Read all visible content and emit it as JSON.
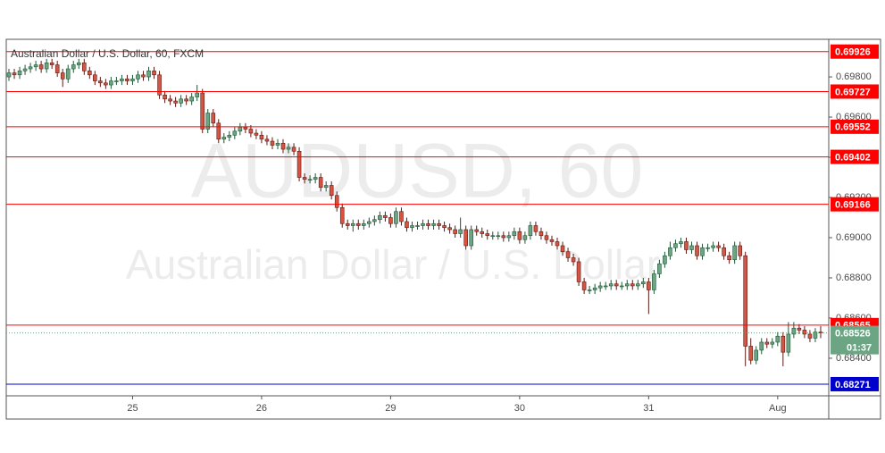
{
  "chart_data": {
    "type": "candlestick",
    "title": "Australian Dollar / U.S. Dollar, 60, FXCM",
    "watermark": [
      "AUDUSD, 60",
      "Australian Dollar / U.S. Dollar"
    ],
    "up_color": "#6ba583",
    "up_border": "#225437",
    "down_color": "#d75442",
    "down_border": "#5b1a13",
    "xlim": [
      -0.5,
      152.5
    ],
    "xticks": [
      {
        "value": 23,
        "label": "25"
      },
      {
        "value": 47,
        "label": "26"
      },
      {
        "value": 71,
        "label": "29"
      },
      {
        "value": 95,
        "label": "30"
      },
      {
        "value": 119,
        "label": "31"
      },
      {
        "value": 143,
        "label": "Aug"
      }
    ],
    "ylim": [
      0.68213,
      0.69987
    ],
    "yticks": [
      {
        "value": 0.698,
        "label": "0.69800"
      },
      {
        "value": 0.696,
        "label": "0.69600"
      },
      {
        "value": 0.694,
        "label": "0.69400"
      },
      {
        "value": 0.692,
        "label": "0.69200"
      },
      {
        "value": 0.69,
        "label": "0.69000"
      },
      {
        "value": 0.688,
        "label": "0.68800"
      },
      {
        "value": 0.686,
        "label": "0.68600"
      },
      {
        "value": 0.684,
        "label": "0.68400"
      }
    ],
    "levels": [
      {
        "value": 0.69926,
        "color": "#ff0000"
      },
      {
        "value": 0.69727,
        "color": "#ff0000"
      },
      {
        "value": 0.69552,
        "color": "#ff0000"
      },
      {
        "value": 0.69402,
        "color": "#ff0000"
      },
      {
        "value": 0.69166,
        "color": "#ff0000"
      },
      {
        "value": 0.68565,
        "color": "#ff0000"
      },
      {
        "value": 0.68271,
        "color": "#0000cc"
      }
    ],
    "countdown": "01:37",
    "candles": [
      [
        0.698,
        0.6984,
        0.6978,
        0.6982
      ],
      [
        0.6982,
        0.6984,
        0.6979,
        0.6981
      ],
      [
        0.6981,
        0.6985,
        0.6979,
        0.6983
      ],
      [
        0.6983,
        0.6986,
        0.6981,
        0.6984
      ],
      [
        0.6984,
        0.6987,
        0.6982,
        0.6985
      ],
      [
        0.6985,
        0.6988,
        0.6983,
        0.6986
      ],
      [
        0.6986,
        0.6988,
        0.6982,
        0.6984
      ],
      [
        0.6984,
        0.6989,
        0.6982,
        0.6987
      ],
      [
        0.6987,
        0.6989,
        0.6984,
        0.6986
      ],
      [
        0.6986,
        0.6988,
        0.698,
        0.6982
      ],
      [
        0.6982,
        0.6984,
        0.6975,
        0.6979
      ],
      [
        0.6979,
        0.6986,
        0.6977,
        0.6984
      ],
      [
        0.6984,
        0.6988,
        0.6982,
        0.6986
      ],
      [
        0.6986,
        0.6989,
        0.6984,
        0.6987
      ],
      [
        0.6987,
        0.6989,
        0.6981,
        0.6983
      ],
      [
        0.6983,
        0.6985,
        0.6979,
        0.6981
      ],
      [
        0.6981,
        0.6983,
        0.6976,
        0.6978
      ],
      [
        0.6978,
        0.698,
        0.6975,
        0.6977
      ],
      [
        0.6977,
        0.6979,
        0.6974,
        0.6976
      ],
      [
        0.6976,
        0.698,
        0.6974,
        0.6978
      ],
      [
        0.6978,
        0.698,
        0.6976,
        0.6978
      ],
      [
        0.6978,
        0.6981,
        0.6976,
        0.6979
      ],
      [
        0.6979,
        0.6981,
        0.6976,
        0.6978
      ],
      [
        0.6978,
        0.6981,
        0.6976,
        0.6979
      ],
      [
        0.6979,
        0.6983,
        0.6977,
        0.6981
      ],
      [
        0.6981,
        0.6983,
        0.6978,
        0.698
      ],
      [
        0.698,
        0.6985,
        0.6978,
        0.6983
      ],
      [
        0.6983,
        0.6985,
        0.6979,
        0.6981
      ],
      [
        0.6981,
        0.6983,
        0.6969,
        0.6971
      ],
      [
        0.6971,
        0.6973,
        0.6967,
        0.6969
      ],
      [
        0.6969,
        0.6971,
        0.6966,
        0.6968
      ],
      [
        0.6968,
        0.697,
        0.6965,
        0.6967
      ],
      [
        0.6967,
        0.6971,
        0.6965,
        0.6969
      ],
      [
        0.6969,
        0.6971,
        0.6966,
        0.6968
      ],
      [
        0.6968,
        0.6972,
        0.6966,
        0.697
      ],
      [
        0.697,
        0.6976,
        0.6968,
        0.6972
      ],
      [
        0.6972,
        0.6974,
        0.6952,
        0.6954
      ],
      [
        0.6954,
        0.6964,
        0.6952,
        0.6962
      ],
      [
        0.6962,
        0.6964,
        0.6955,
        0.6957
      ],
      [
        0.6957,
        0.6959,
        0.6947,
        0.6949
      ],
      [
        0.6949,
        0.6952,
        0.6947,
        0.695
      ],
      [
        0.695,
        0.6953,
        0.6948,
        0.6951
      ],
      [
        0.6951,
        0.6955,
        0.6949,
        0.6953
      ],
      [
        0.6953,
        0.6957,
        0.6951,
        0.6955
      ],
      [
        0.6955,
        0.6957,
        0.6952,
        0.6954
      ],
      [
        0.6954,
        0.6956,
        0.695,
        0.6952
      ],
      [
        0.6952,
        0.6954,
        0.6949,
        0.6951
      ],
      [
        0.6951,
        0.6953,
        0.6947,
        0.6949
      ],
      [
        0.6949,
        0.6951,
        0.6946,
        0.6948
      ],
      [
        0.6948,
        0.695,
        0.6944,
        0.6946
      ],
      [
        0.6946,
        0.6949,
        0.6944,
        0.6947
      ],
      [
        0.6947,
        0.6949,
        0.6942,
        0.6944
      ],
      [
        0.6944,
        0.6947,
        0.6942,
        0.6945
      ],
      [
        0.6945,
        0.6947,
        0.6941,
        0.6943
      ],
      [
        0.6943,
        0.6945,
        0.6928,
        0.693
      ],
      [
        0.693,
        0.6932,
        0.6927,
        0.6929
      ],
      [
        0.6929,
        0.6931,
        0.6927,
        0.6929
      ],
      [
        0.6929,
        0.6932,
        0.6927,
        0.693
      ],
      [
        0.693,
        0.6932,
        0.6923,
        0.6925
      ],
      [
        0.6925,
        0.6928,
        0.6923,
        0.6926
      ],
      [
        0.6926,
        0.6928,
        0.6919,
        0.6921
      ],
      [
        0.6921,
        0.6923,
        0.6913,
        0.6915
      ],
      [
        0.6915,
        0.6917,
        0.6905,
        0.6907
      ],
      [
        0.6907,
        0.6909,
        0.6904,
        0.6906
      ],
      [
        0.6906,
        0.6909,
        0.6903,
        0.6907
      ],
      [
        0.6907,
        0.6909,
        0.6904,
        0.6906
      ],
      [
        0.6906,
        0.6909,
        0.6904,
        0.6907
      ],
      [
        0.6907,
        0.691,
        0.6905,
        0.6908
      ],
      [
        0.6908,
        0.6911,
        0.6906,
        0.6909
      ],
      [
        0.6909,
        0.6913,
        0.6907,
        0.6911
      ],
      [
        0.6911,
        0.6913,
        0.6908,
        0.691
      ],
      [
        0.691,
        0.6912,
        0.6905,
        0.6907
      ],
      [
        0.6907,
        0.6915,
        0.6905,
        0.6913
      ],
      [
        0.6913,
        0.6915,
        0.6906,
        0.6908
      ],
      [
        0.6908,
        0.691,
        0.6903,
        0.6905
      ],
      [
        0.6905,
        0.6908,
        0.6903,
        0.6906
      ],
      [
        0.6906,
        0.6908,
        0.6904,
        0.6906
      ],
      [
        0.6906,
        0.6909,
        0.6904,
        0.6907
      ],
      [
        0.6907,
        0.6909,
        0.6904,
        0.6906
      ],
      [
        0.6906,
        0.6909,
        0.6904,
        0.6907
      ],
      [
        0.6907,
        0.6909,
        0.6904,
        0.6906
      ],
      [
        0.6906,
        0.6908,
        0.6903,
        0.6905
      ],
      [
        0.6905,
        0.6907,
        0.6902,
        0.6904
      ],
      [
        0.6904,
        0.6906,
        0.69,
        0.6902
      ],
      [
        0.6902,
        0.691,
        0.69,
        0.6904
      ],
      [
        0.6904,
        0.6906,
        0.6894,
        0.6896
      ],
      [
        0.6896,
        0.6906,
        0.6894,
        0.6904
      ],
      [
        0.6904,
        0.6906,
        0.6901,
        0.6903
      ],
      [
        0.6903,
        0.6905,
        0.69,
        0.6902
      ],
      [
        0.6902,
        0.6904,
        0.6899,
        0.6901
      ],
      [
        0.6901,
        0.6903,
        0.6899,
        0.6901
      ],
      [
        0.6901,
        0.6903,
        0.6899,
        0.6901
      ],
      [
        0.6901,
        0.6903,
        0.6898,
        0.69
      ],
      [
        0.69,
        0.6903,
        0.6898,
        0.6901
      ],
      [
        0.6901,
        0.6905,
        0.6899,
        0.6903
      ],
      [
        0.6903,
        0.6905,
        0.6897,
        0.6899
      ],
      [
        0.6899,
        0.6903,
        0.6897,
        0.6901
      ],
      [
        0.6901,
        0.6908,
        0.6899,
        0.6906
      ],
      [
        0.6906,
        0.6908,
        0.6901,
        0.6903
      ],
      [
        0.6903,
        0.6905,
        0.6899,
        0.6901
      ],
      [
        0.6901,
        0.6903,
        0.6897,
        0.6899
      ],
      [
        0.6899,
        0.6901,
        0.6896,
        0.6898
      ],
      [
        0.6898,
        0.69,
        0.6894,
        0.6896
      ],
      [
        0.6896,
        0.6898,
        0.6891,
        0.6893
      ],
      [
        0.6893,
        0.6895,
        0.6888,
        0.689
      ],
      [
        0.689,
        0.6892,
        0.6886,
        0.6888
      ],
      [
        0.6888,
        0.689,
        0.6876,
        0.6878
      ],
      [
        0.6878,
        0.688,
        0.6872,
        0.6874
      ],
      [
        0.6874,
        0.6876,
        0.6872,
        0.6874
      ],
      [
        0.6874,
        0.6877,
        0.6872,
        0.6875
      ],
      [
        0.6875,
        0.6878,
        0.6873,
        0.6876
      ],
      [
        0.6876,
        0.6878,
        0.6874,
        0.6876
      ],
      [
        0.6876,
        0.6879,
        0.6874,
        0.6877
      ],
      [
        0.6877,
        0.6879,
        0.6874,
        0.6876
      ],
      [
        0.6876,
        0.6878,
        0.6874,
        0.6876
      ],
      [
        0.6876,
        0.6879,
        0.6874,
        0.6877
      ],
      [
        0.6877,
        0.6879,
        0.6874,
        0.6876
      ],
      [
        0.6876,
        0.6879,
        0.6874,
        0.6877
      ],
      [
        0.6877,
        0.688,
        0.6875,
        0.6878
      ],
      [
        0.6878,
        0.688,
        0.6862,
        0.6874
      ],
      [
        0.6874,
        0.6884,
        0.6872,
        0.6882
      ],
      [
        0.6882,
        0.6889,
        0.688,
        0.6887
      ],
      [
        0.6887,
        0.6893,
        0.6885,
        0.6891
      ],
      [
        0.6891,
        0.6898,
        0.6889,
        0.6895
      ],
      [
        0.6895,
        0.6899,
        0.6893,
        0.6897
      ],
      [
        0.6897,
        0.69,
        0.6895,
        0.6898
      ],
      [
        0.6898,
        0.69,
        0.6892,
        0.6894
      ],
      [
        0.6894,
        0.6898,
        0.6892,
        0.6896
      ],
      [
        0.6896,
        0.6898,
        0.6889,
        0.6891
      ],
      [
        0.6891,
        0.6897,
        0.6889,
        0.6895
      ],
      [
        0.6895,
        0.6897,
        0.6893,
        0.6895
      ],
      [
        0.6895,
        0.6898,
        0.6893,
        0.6896
      ],
      [
        0.6896,
        0.6898,
        0.6893,
        0.6895
      ],
      [
        0.6895,
        0.6897,
        0.6889,
        0.6891
      ],
      [
        0.6891,
        0.6893,
        0.6887,
        0.6889
      ],
      [
        0.6889,
        0.6898,
        0.6887,
        0.6896
      ],
      [
        0.6896,
        0.6898,
        0.6889,
        0.6891
      ],
      [
        0.6891,
        0.6893,
        0.6836,
        0.6846
      ],
      [
        0.6846,
        0.685,
        0.6837,
        0.6839
      ],
      [
        0.6839,
        0.6846,
        0.6837,
        0.6844
      ],
      [
        0.6844,
        0.685,
        0.6842,
        0.6848
      ],
      [
        0.6848,
        0.685,
        0.6845,
        0.6847
      ],
      [
        0.6847,
        0.685,
        0.6845,
        0.6848
      ],
      [
        0.6848,
        0.6853,
        0.6846,
        0.6851
      ],
      [
        0.6851,
        0.6853,
        0.6836,
        0.6843
      ],
      [
        0.6843,
        0.6858,
        0.6841,
        0.6852
      ],
      [
        0.6852,
        0.6858,
        0.685,
        0.6855
      ],
      [
        0.6855,
        0.6857,
        0.6852,
        0.6854
      ],
      [
        0.6854,
        0.6856,
        0.685,
        0.6852
      ],
      [
        0.6852,
        0.6854,
        0.6848,
        0.685
      ],
      [
        0.685,
        0.6855,
        0.6848,
        0.6853
      ],
      [
        0.6853,
        0.6856,
        0.685,
        0.68526
      ]
    ]
  }
}
